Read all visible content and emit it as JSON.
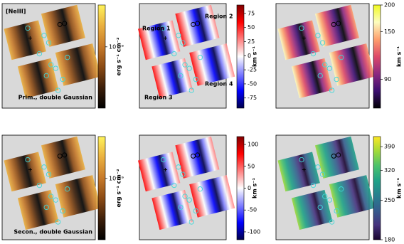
{
  "chart_data": [
    {
      "type": "map",
      "colorbar_label": "erg s⁻¹ cm⁻²",
      "scale": "log",
      "ylim": [
        2e-20,
        3e-19
      ],
      "yticks": [
        {
          "value": 1e-19,
          "label": "10⁻¹⁹"
        }
      ],
      "colormap": [
        "#000000",
        "#3d1f0a",
        "#8a4a14",
        "#c77a2a",
        "#eab040",
        "#fff35a"
      ],
      "annotations": [
        "[NeIII]",
        "Prim., double Gaussian"
      ]
    },
    {
      "type": "map",
      "colorbar_label": "km s⁻¹",
      "scale": "linear",
      "ylim": [
        -93,
        90
      ],
      "yticks": [
        75,
        50,
        25,
        0,
        -25,
        -50,
        -75
      ],
      "colormap": [
        "#00004c",
        "#0000ff",
        "#8080ff",
        "#ffffff",
        "#ff8080",
        "#ff0000",
        "#800000"
      ],
      "annotations": [
        "Region 1",
        "Region 2",
        "Region 3",
        "Region 4"
      ]
    },
    {
      "type": "map",
      "colorbar_label": "km s⁻¹",
      "scale": "log",
      "ylim": [
        66,
        200
      ],
      "yticks": [
        200,
        150,
        90
      ],
      "colormap": [
        "#000004",
        "#3b0f70",
        "#8c2981",
        "#de4968",
        "#fe9f6d",
        "#fcfdbf",
        "#f0f921"
      ],
      "annotations": []
    },
    {
      "type": "map",
      "colorbar_label": "erg s⁻¹ cm⁻²",
      "scale": "log",
      "ylim": [
        2e-20,
        3e-19
      ],
      "yticks": [
        {
          "value": 1e-19,
          "label": "10⁻¹⁹"
        }
      ],
      "colormap": [
        "#000000",
        "#3d1f0a",
        "#8a4a14",
        "#c77a2a",
        "#eab040",
        "#fff35a"
      ],
      "annotations": [
        "Secon., double Gaussian"
      ]
    },
    {
      "type": "map",
      "colorbar_label": "km s⁻¹",
      "scale": "linear",
      "ylim": [
        -118,
        118
      ],
      "yticks": [
        100,
        50,
        0,
        -50,
        -100
      ],
      "colormap": [
        "#00004c",
        "#0000ff",
        "#8080ff",
        "#ffffff",
        "#ff8080",
        "#ff0000",
        "#800000"
      ],
      "annotations": []
    },
    {
      "type": "map",
      "colorbar_label": "km s⁻¹",
      "scale": "log",
      "ylim": [
        180,
        424
      ],
      "yticks": [
        390,
        320,
        250,
        180
      ],
      "colormap": [
        "#1a0530",
        "#46327e",
        "#365c8d",
        "#277f8e",
        "#1fa187",
        "#4ac16d",
        "#a0da39",
        "#fde725"
      ],
      "annotations": []
    }
  ]
}
